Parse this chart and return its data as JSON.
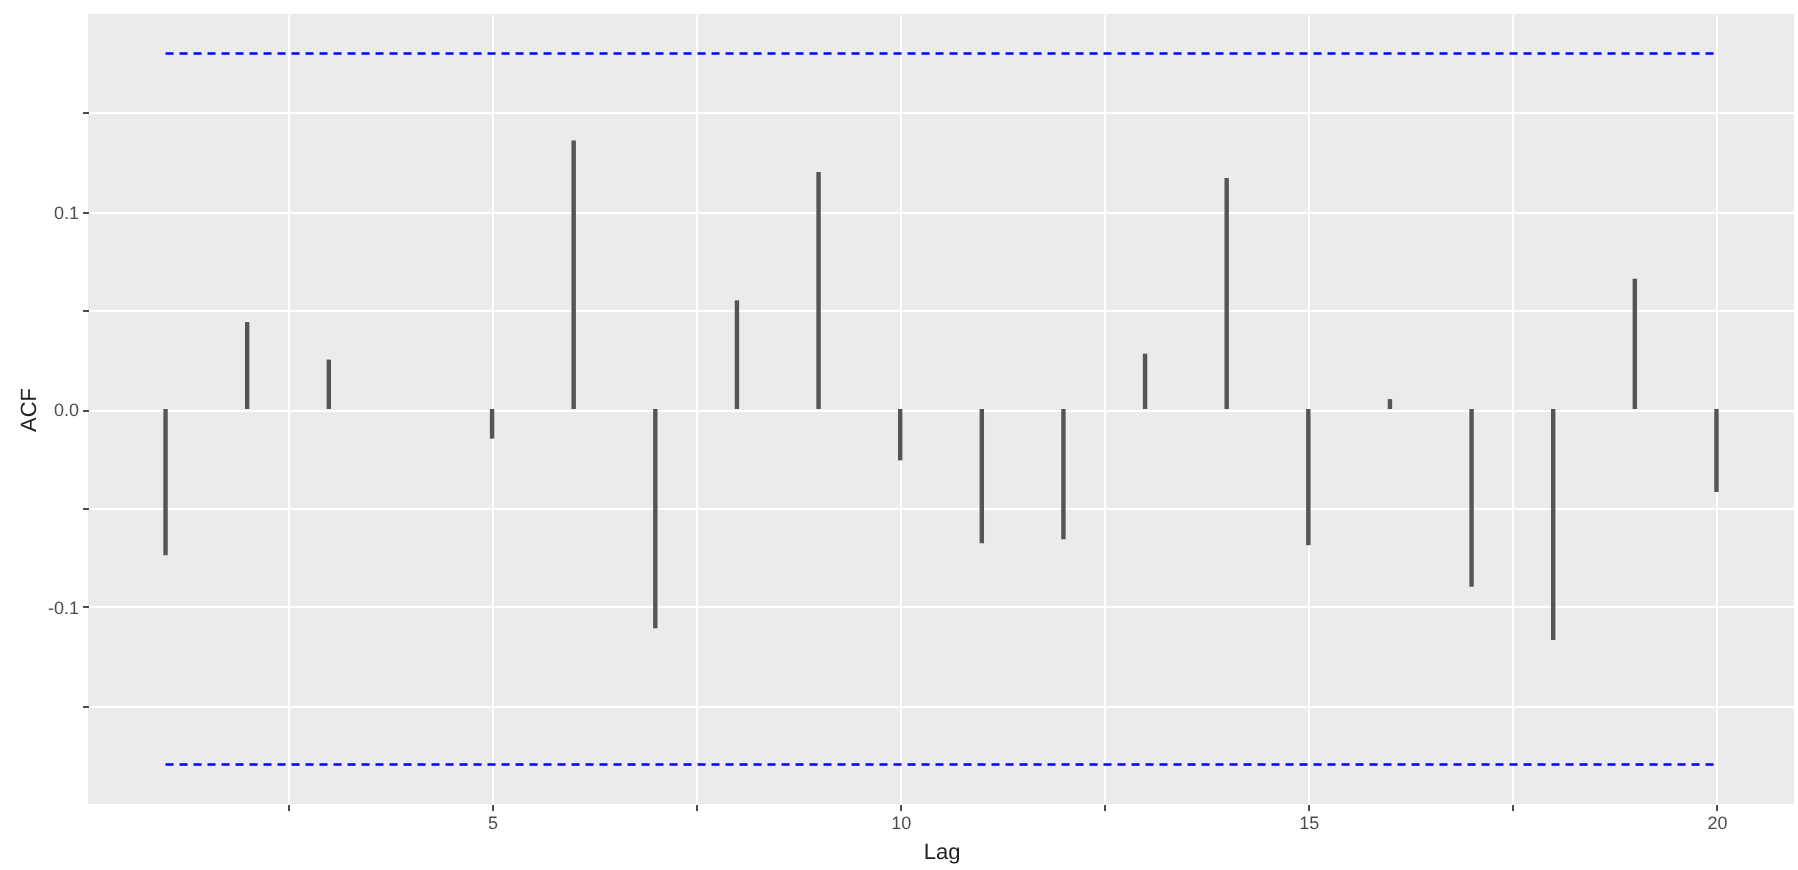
{
  "chart_data": {
    "type": "bar",
    "xlabel": "Lag",
    "ylabel": "ACF",
    "x": [
      1,
      2,
      3,
      4,
      5,
      6,
      7,
      8,
      9,
      10,
      11,
      12,
      13,
      14,
      15,
      16,
      17,
      18,
      19,
      20
    ],
    "values": [
      -0.074,
      0.044,
      0.025,
      null,
      -0.015,
      0.136,
      -0.111,
      0.055,
      0.12,
      -0.026,
      -0.068,
      -0.066,
      0.028,
      0.117,
      -0.069,
      0.005,
      -0.09,
      -0.117,
      0.066,
      -0.042
    ],
    "color": "#555555",
    "xlim": [
      0.05,
      20.95
    ],
    "xticks": [
      {
        "value": 2.5,
        "label": null
      },
      5,
      {
        "value": 7.5,
        "label": null
      },
      10,
      {
        "value": 12.5,
        "label": null
      },
      15,
      {
        "value": 17.5,
        "label": null
      },
      20
    ],
    "ylim": [
      -0.2,
      0.2
    ],
    "yticks": [
      {
        "value": -0.15,
        "label": null
      },
      {
        "value": -0.1,
        "label": "-0.1"
      },
      {
        "value": -0.05,
        "label": null
      },
      {
        "value": 0,
        "label": "0.0"
      },
      {
        "value": 0.05,
        "label": null
      },
      {
        "value": 0.1,
        "label": "0.1"
      },
      {
        "value": 0.15,
        "label": null
      }
    ],
    "grid": true,
    "ref_lines": [
      {
        "axis": "y",
        "value": 0.18,
        "color": "#0000ff",
        "line_style": "dashed"
      },
      {
        "axis": "y",
        "value": -0.18,
        "color": "#0000ff",
        "line_style": "dashed"
      }
    ]
  }
}
